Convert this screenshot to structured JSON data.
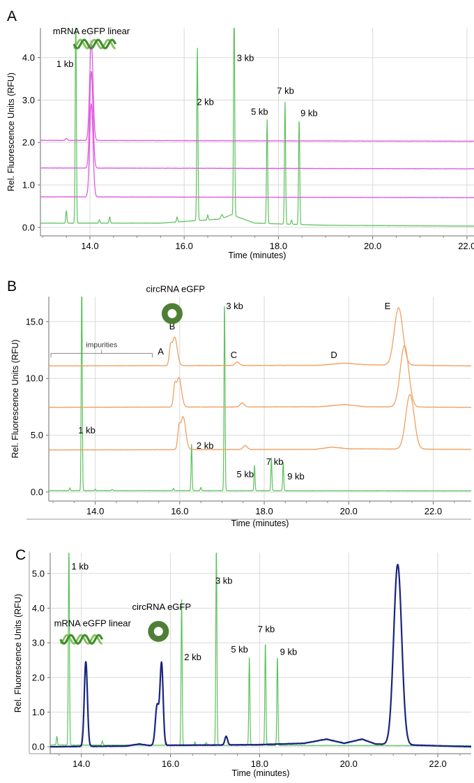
{
  "colors": {
    "ladder": "#5cc25c",
    "linear_mrna": "#e05ae0",
    "circ_prep": "#f0a060",
    "circ_final": "#1a237e",
    "helix": "#3f8f2c",
    "circle": "#4f7f34",
    "grid": "#d9d9d9",
    "axis": "#9a9a9a"
  },
  "chart_data": [
    {
      "id": "A",
      "panel_label": "A",
      "type": "line",
      "xlabel": "Time (minutes)",
      "ylabel": "Rel. Fluorescence Units (RFU)",
      "xlim": [
        12.95,
        22.15
      ],
      "ylim": [
        -0.2,
        4.7
      ],
      "xticks": [
        14.0,
        16.0,
        18.0,
        20.0,
        22.0
      ],
      "xtick_labels": [
        "14.0",
        "16.0",
        "18.0",
        "20.0",
        "22.0"
      ],
      "yticks": [
        0.0,
        1.0,
        2.0,
        3.0,
        4.0
      ],
      "ytick_labels": [
        "0.0",
        "1.0",
        "2.0",
        "3.0",
        "4.0"
      ],
      "grid": true,
      "annotations": [
        {
          "text": "mRNA eGFP linear",
          "x": 14.03,
          "y": 4.55
        },
        {
          "text": "1 kb",
          "x": 13.47,
          "y": 3.78
        },
        {
          "text": "2 kb",
          "x": 16.45,
          "y": 2.88
        },
        {
          "text": "3 kb",
          "x": 17.3,
          "y": 3.92
        },
        {
          "text": "5 kb",
          "x": 17.6,
          "y": 2.65
        },
        {
          "text": "7 kb",
          "x": 18.15,
          "y": 3.15
        },
        {
          "text": "9 kb",
          "x": 18.65,
          "y": 2.62
        }
      ],
      "icons": [
        {
          "name": "mrna-helix-icon",
          "x": 14.1,
          "y": 4.32
        }
      ],
      "series": [
        {
          "role": "ladder",
          "baseline": [
            [
              12.95,
              0.1
            ],
            [
              15.5,
              0.1
            ],
            [
              16.8,
              0.2
            ],
            [
              17.0,
              0.3
            ],
            [
              17.5,
              0.1
            ],
            [
              19.0,
              0.05
            ],
            [
              22.15,
              0.03
            ]
          ],
          "peaks": [
            [
              13.5,
              0.3,
              0.012
            ],
            [
              13.7,
              5.0,
              0.012
            ],
            [
              14.2,
              0.08,
              0.012
            ],
            [
              14.42,
              0.15,
              0.012
            ],
            [
              15.85,
              0.12,
              0.012
            ],
            [
              16.28,
              4.1,
              0.012
            ],
            [
              16.5,
              0.12,
              0.012
            ],
            [
              16.8,
              0.1,
              0.02
            ],
            [
              17.06,
              5.0,
              0.012
            ],
            [
              17.76,
              2.45,
              0.012
            ],
            [
              18.14,
              2.9,
              0.012
            ],
            [
              18.28,
              0.1,
              0.012
            ],
            [
              18.44,
              2.5,
              0.012
            ]
          ]
        },
        {
          "role": "linear_mrna",
          "baseline": [
            [
              12.95,
              0.72
            ],
            [
              22.15,
              0.7
            ]
          ],
          "peaks": [
            [
              14.03,
              2.2,
              0.035
            ]
          ]
        },
        {
          "role": "linear_mrna",
          "baseline": [
            [
              12.95,
              1.4
            ],
            [
              22.15,
              1.38
            ]
          ],
          "peaks": [
            [
              14.03,
              2.28,
              0.035
            ]
          ]
        },
        {
          "role": "linear_mrna",
          "baseline": [
            [
              12.95,
              2.05
            ],
            [
              22.15,
              2.03
            ]
          ],
          "peaks": [
            [
              13.5,
              0.05,
              0.02
            ],
            [
              14.03,
              2.35,
              0.035
            ]
          ]
        }
      ]
    },
    {
      "id": "B",
      "panel_label": "B",
      "type": "line",
      "xlabel": "Time (minutes)",
      "ylabel": "Rel. Fluorescence Units (RFU)",
      "xlim": [
        12.9,
        22.9
      ],
      "ylim": [
        -0.8,
        17.2
      ],
      "xticks": [
        14.0,
        16.0,
        18.0,
        20.0,
        22.0
      ],
      "xtick_labels": [
        "14.0",
        "16.0",
        "18.0",
        "20.0",
        "22.0"
      ],
      "yticks": [
        0.0,
        5.0,
        10.0,
        15.0
      ],
      "ytick_labels": [
        "0.0",
        "5.0",
        "10.0",
        "15.0"
      ],
      "grid": true,
      "bracket": {
        "x1": 12.95,
        "x2": 15.35,
        "y": 12.2,
        "text": "impurities"
      },
      "annotations": [
        {
          "text": "circRNA eGFP",
          "x": 15.9,
          "y": 17.6
        },
        {
          "text": "A",
          "x": 15.55,
          "y": 12.1
        },
        {
          "text": "B",
          "x": 15.82,
          "y": 14.3
        },
        {
          "text": "3 kb",
          "x": 17.3,
          "y": 16.1
        },
        {
          "text": "C",
          "x": 17.28,
          "y": 11.8
        },
        {
          "text": "D",
          "x": 19.65,
          "y": 11.8
        },
        {
          "text": "E",
          "x": 20.92,
          "y": 16.1
        },
        {
          "text": "1 kb",
          "x": 13.8,
          "y": 5.15
        },
        {
          "text": "2 kb",
          "x": 16.6,
          "y": 3.8
        },
        {
          "text": "5 kb",
          "x": 17.55,
          "y": 1.3
        },
        {
          "text": "7 kb",
          "x": 18.25,
          "y": 2.4
        },
        {
          "text": "9 kb",
          "x": 18.75,
          "y": 1.1
        }
      ],
      "icons": [
        {
          "name": "circ-rna-icon",
          "x": 15.82,
          "y": 15.7
        }
      ],
      "series": [
        {
          "role": "ladder",
          "baseline": [
            [
              12.9,
              0.12
            ],
            [
              22.9,
              0.1
            ]
          ],
          "peaks": [
            [
              13.4,
              0.25,
              0.012
            ],
            [
              13.68,
              19.0,
              0.012
            ],
            [
              14.0,
              0.12,
              0.012
            ],
            [
              14.4,
              0.12,
              0.012
            ],
            [
              15.85,
              0.2,
              0.012
            ],
            [
              16.28,
              4.1,
              0.012
            ],
            [
              16.5,
              0.3,
              0.012
            ],
            [
              17.06,
              16.7,
              0.012
            ],
            [
              17.77,
              2.25,
              0.012
            ],
            [
              18.17,
              2.9,
              0.012
            ],
            [
              18.45,
              2.5,
              0.012
            ]
          ]
        },
        {
          "role": "circ_prep",
          "baseline": [
            [
              12.9,
              3.7
            ],
            [
              19.2,
              3.75
            ],
            [
              19.6,
              3.95
            ],
            [
              20.0,
              3.8
            ],
            [
              22.9,
              3.75
            ]
          ],
          "peaks": [
            [
              15.98,
              1.5,
              0.03
            ],
            [
              16.08,
              2.9,
              0.06
            ],
            [
              17.55,
              0.35,
              0.05
            ],
            [
              21.45,
              4.8,
              0.1
            ]
          ]
        },
        {
          "role": "circ_prep",
          "baseline": [
            [
              12.9,
              7.45
            ],
            [
              19.3,
              7.5
            ],
            [
              19.9,
              7.7
            ],
            [
              20.4,
              7.5
            ],
            [
              22.9,
              7.45
            ]
          ],
          "peaks": [
            [
              15.88,
              1.5,
              0.03
            ],
            [
              15.98,
              2.6,
              0.06
            ],
            [
              17.48,
              0.35,
              0.05
            ],
            [
              21.32,
              5.4,
              0.1
            ]
          ]
        },
        {
          "role": "circ_prep",
          "baseline": [
            [
              12.9,
              11.1
            ],
            [
              19.3,
              11.15
            ],
            [
              19.9,
              11.35
            ],
            [
              20.4,
              11.2
            ],
            [
              22.9,
              11.1
            ]
          ],
          "peaks": [
            [
              15.78,
              1.3,
              0.03
            ],
            [
              15.88,
              2.5,
              0.06
            ],
            [
              17.36,
              0.3,
              0.05
            ],
            [
              21.18,
              5.05,
              0.1
            ]
          ]
        }
      ]
    },
    {
      "id": "C",
      "panel_label": "C",
      "type": "line",
      "xlabel": "Time (minutes)",
      "ylabel": "Rel. Fluorescence Units (RFU)",
      "xlim": [
        13.3,
        22.75
      ],
      "ylim": [
        -0.2,
        5.6
      ],
      "xticks": [
        14.0,
        16.0,
        18.0,
        20.0,
        22.0
      ],
      "xtick_labels": [
        "14.0",
        "16.0",
        "18.0",
        "20.0",
        "22.0"
      ],
      "yticks": [
        0.0,
        1.0,
        2.0,
        3.0,
        4.0,
        5.0
      ],
      "ytick_labels": [
        "0.0",
        "1.0",
        "2.0",
        "3.0",
        "4.0",
        "5.0"
      ],
      "grid": true,
      "annotations": [
        {
          "text": "1 kb",
          "x": 13.97,
          "y": 5.12
        },
        {
          "text": "3 kb",
          "x": 17.2,
          "y": 4.7
        },
        {
          "text": "mRNA eGFP linear",
          "x": 14.25,
          "y": 3.48
        },
        {
          "text": "circRNA eGFP",
          "x": 15.8,
          "y": 3.95
        },
        {
          "text": "2 kb",
          "x": 16.5,
          "y": 2.5
        },
        {
          "text": "5 kb",
          "x": 17.55,
          "y": 2.72
        },
        {
          "text": "7 kb",
          "x": 18.15,
          "y": 3.3
        },
        {
          "text": "9 kb",
          "x": 18.65,
          "y": 2.65
        }
      ],
      "icons": [
        {
          "name": "mrna-helix-icon",
          "x": 14.0,
          "y": 3.1
        },
        {
          "name": "circ-rna-icon",
          "x": 15.73,
          "y": 3.33
        }
      ],
      "series": [
        {
          "role": "ladder",
          "baseline": [
            [
              13.3,
              0.05
            ],
            [
              22.75,
              0.03
            ]
          ],
          "peaks": [
            [
              13.45,
              0.25,
              0.012
            ],
            [
              13.72,
              5.8,
              0.012
            ],
            [
              14.47,
              0.12,
              0.012
            ],
            [
              15.9,
              0.1,
              0.012
            ],
            [
              16.25,
              4.2,
              0.012
            ],
            [
              16.55,
              0.1,
              0.012
            ],
            [
              16.8,
              0.08,
              0.02
            ],
            [
              17.03,
              5.8,
              0.012
            ],
            [
              17.77,
              2.55,
              0.012
            ],
            [
              18.13,
              3.0,
              0.012
            ],
            [
              18.4,
              2.6,
              0.012
            ]
          ]
        },
        {
          "role": "circ_final",
          "baseline": [
            [
              13.3,
              0.0
            ],
            [
              15.0,
              0.02
            ],
            [
              15.3,
              0.08
            ],
            [
              15.5,
              0.04
            ],
            [
              17.0,
              0.05
            ],
            [
              18.0,
              0.06
            ],
            [
              19.0,
              0.1
            ],
            [
              19.5,
              0.22
            ],
            [
              19.9,
              0.1
            ],
            [
              20.3,
              0.22
            ],
            [
              20.6,
              0.08
            ],
            [
              22.75,
              0.0
            ]
          ],
          "peaks": [
            [
              14.1,
              2.45,
              0.035
            ],
            [
              15.7,
              1.15,
              0.04
            ],
            [
              15.8,
              2.35,
              0.035
            ],
            [
              17.25,
              0.25,
              0.03
            ],
            [
              21.1,
              5.2,
              0.09
            ]
          ]
        }
      ]
    }
  ]
}
